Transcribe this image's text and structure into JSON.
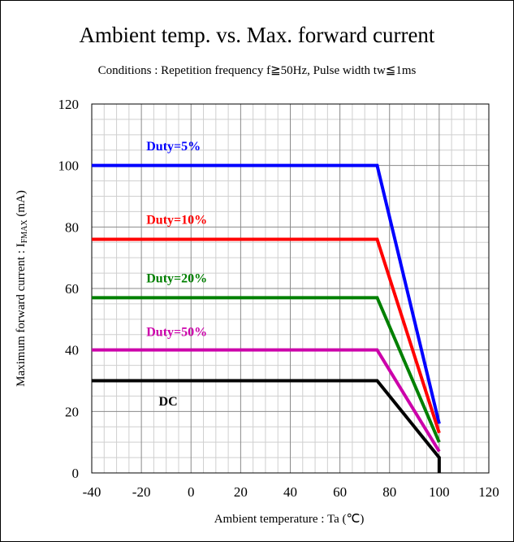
{
  "chart_data": {
    "type": "line",
    "title": "Ambient temp. vs. Max. forward current",
    "subtitle": "Conditions : Repetition frequency  f≧50Hz, Pulse width tw≦1ms",
    "xlabel": "Ambient temperature : Ta (℃)",
    "ylabel_main": "Maximum forward current : I",
    "ylabel_sub": "FMAX",
    "ylabel_unit": "  (mA)",
    "xlim": [
      -40,
      120
    ],
    "ylim": [
      0,
      120
    ],
    "xticks": [
      -40,
      -20,
      0,
      20,
      40,
      60,
      80,
      100,
      120
    ],
    "yticks": [
      0,
      20,
      40,
      60,
      80,
      100,
      120
    ],
    "grid": true,
    "series": [
      {
        "name": "Duty=5%",
        "color": "#0000ff",
        "x": [
          -40,
          75,
          100
        ],
        "y": [
          100,
          100,
          16
        ]
      },
      {
        "name": "Duty=10%",
        "color": "#ff0000",
        "x": [
          -40,
          75,
          100
        ],
        "y": [
          76,
          76,
          13
        ]
      },
      {
        "name": "Duty=20%",
        "color": "#008000",
        "x": [
          -40,
          75,
          100
        ],
        "y": [
          57,
          57,
          10
        ]
      },
      {
        "name": "Duty=50%",
        "color": "#cc00aa",
        "x": [
          -40,
          75,
          100
        ],
        "y": [
          40,
          40,
          7
        ]
      },
      {
        "name": "DC",
        "color": "#000000",
        "x": [
          -40,
          75,
          100,
          100
        ],
        "y": [
          30,
          30,
          5,
          0
        ]
      }
    ]
  }
}
